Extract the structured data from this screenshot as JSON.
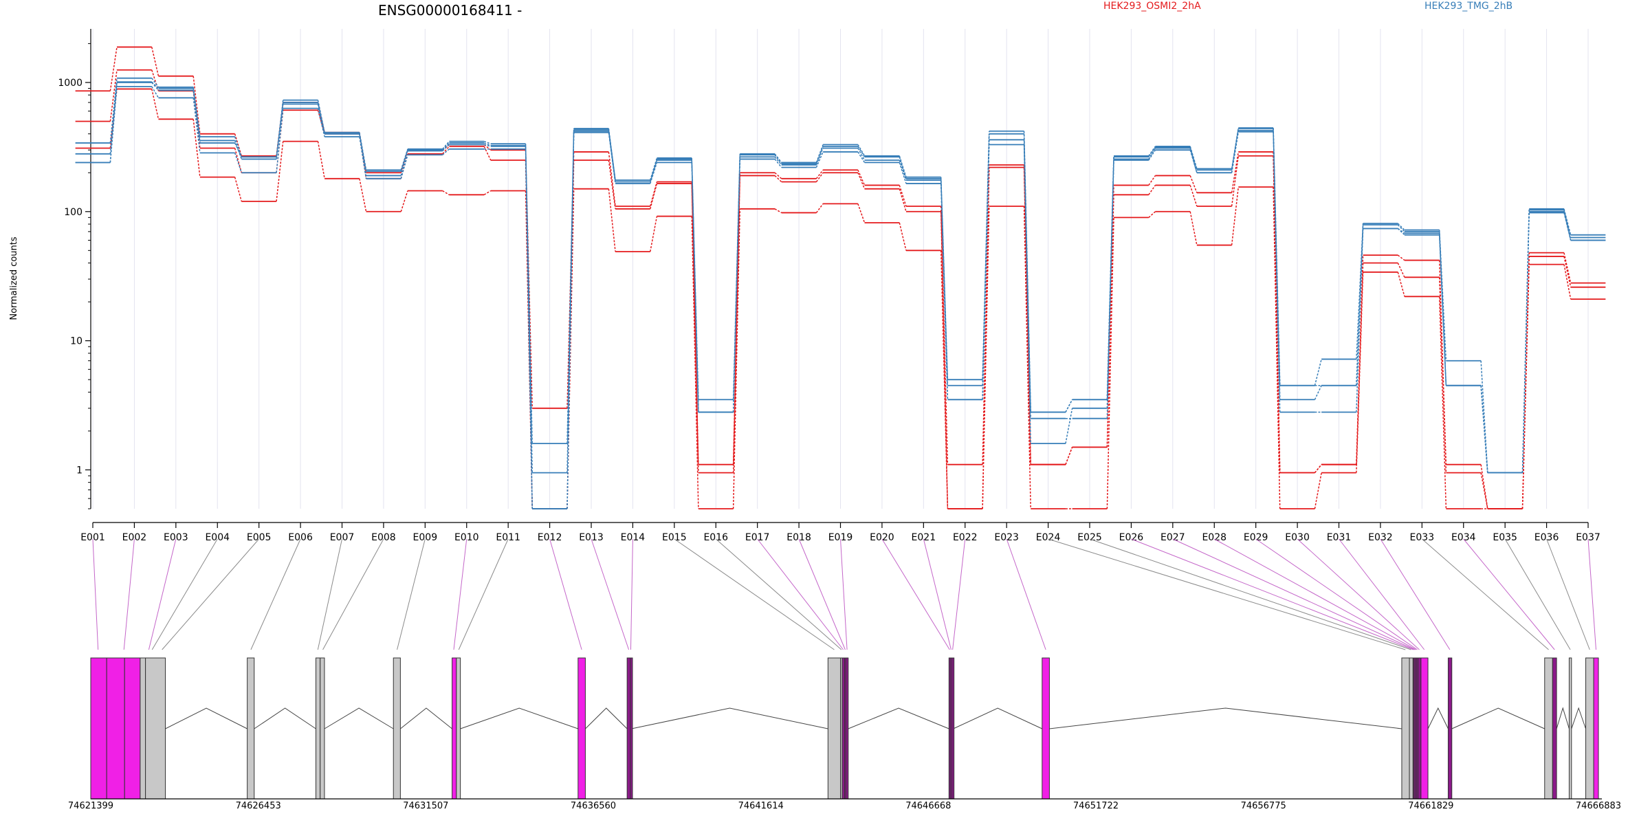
{
  "chart_data": {
    "type": "line",
    "title": "ENSG00000168411 -",
    "ylabel": "Normalized counts",
    "y_scale": "log",
    "ylim": [
      0.5,
      2600
    ],
    "y_ticks": [
      1,
      10,
      100,
      1000
    ],
    "y_tick_labels": [
      "1",
      "10",
      "100",
      "1000"
    ],
    "categories": [
      "E001",
      "E002",
      "E003",
      "E004",
      "E005",
      "E006",
      "E007",
      "E008",
      "E009",
      "E010",
      "E011",
      "E012",
      "E013",
      "E014",
      "E015",
      "E016",
      "E017",
      "E018",
      "E019",
      "E020",
      "E021",
      "E022",
      "E023",
      "E024",
      "E025",
      "E026",
      "E027",
      "E028",
      "E029",
      "E030",
      "E031",
      "E032",
      "E033",
      "E034",
      "E035",
      "E036",
      "E037"
    ],
    "groups": [
      {
        "name": "HEK293_OSMI2_2hA",
        "color": "#e41a1c"
      },
      {
        "name": "HEK293_TMG_2hB",
        "color": "#377eb8"
      }
    ],
    "series": [
      {
        "group": 0,
        "values": [
          860,
          1880,
          1120,
          400,
          270,
          700,
          410,
          200,
          300,
          330,
          300,
          3.0,
          290,
          110,
          170,
          1.1,
          200,
          180,
          210,
          160,
          110,
          1.1,
          230,
          1.1,
          1.5,
          160,
          190,
          140,
          290,
          0.95,
          1.1,
          46,
          42,
          1.1,
          0.5,
          48,
          28
        ]
      },
      {
        "group": 0,
        "values": [
          500,
          1250,
          860,
          310,
          200,
          610,
          400,
          180,
          280,
          320,
          250,
          0.5,
          250,
          105,
          165,
          0.95,
          190,
          170,
          200,
          150,
          100,
          0.5,
          220,
          1.1,
          1.5,
          135,
          160,
          110,
          270,
          0.95,
          1.1,
          40,
          31,
          0.95,
          0.5,
          45,
          26
        ]
      },
      {
        "group": 0,
        "values": [
          310,
          890,
          520,
          185,
          120,
          350,
          180,
          100,
          145,
          135,
          145,
          0.5,
          150,
          49,
          92,
          0.5,
          105,
          98,
          115,
          82,
          50,
          0.5,
          110,
          0.5,
          0.5,
          90,
          100,
          55,
          155,
          0.5,
          0.95,
          34,
          22,
          0.5,
          0.5,
          39,
          21
        ]
      },
      {
        "group": 1,
        "values": [
          340,
          1080,
          920,
          380,
          265,
          730,
          410,
          210,
          305,
          350,
          335,
          0.95,
          440,
          175,
          260,
          3.5,
          280,
          240,
          330,
          270,
          185,
          5.0,
          420,
          2.8,
          3.5,
          270,
          320,
          215,
          445,
          4.5,
          7.2,
          81,
          72,
          7.0,
          0.95,
          105,
          66
        ]
      },
      {
        "group": 1,
        "values": [
          280,
          1010,
          900,
          355,
          255,
          700,
          400,
          205,
          300,
          340,
          325,
          1.6,
          430,
          175,
          255,
          2.8,
          275,
          235,
          320,
          265,
          180,
          4.5,
          400,
          2.8,
          3.5,
          265,
          315,
          210,
          440,
          4.5,
          4.5,
          79,
          70,
          4.5,
          0.95,
          103,
          63
        ]
      },
      {
        "group": 1,
        "values": [
          240,
          1000,
          870,
          340,
          265,
          680,
          400,
          190,
          295,
          330,
          320,
          0.5,
          420,
          170,
          250,
          2.8,
          265,
          230,
          310,
          250,
          175,
          3.5,
          360,
          2.5,
          2.5,
          255,
          310,
          200,
          425,
          3.5,
          4.5,
          74,
          68,
          4.5,
          0.95,
          100,
          60
        ]
      },
      {
        "group": 1,
        "values": [
          240,
          930,
          760,
          285,
          200,
          630,
          380,
          180,
          275,
          305,
          305,
          0.5,
          410,
          165,
          240,
          2.8,
          255,
          220,
          290,
          240,
          165,
          3.5,
          330,
          1.6,
          3.0,
          250,
          300,
          200,
          415,
          2.8,
          2.8,
          74,
          66,
          4.5,
          0.95,
          98,
          60
        ]
      }
    ],
    "genomic_axis": {
      "tick_labels": [
        "74621399",
        "74626453",
        "74631507",
        "74636560",
        "74641614",
        "74646668",
        "74651722",
        "74656775",
        "74661829",
        "74666883"
      ],
      "range": [
        74621399,
        74666883
      ],
      "feature_colors": {
        "significant": "#f020e6",
        "dark_significant": "#8b1a89",
        "not_significant": "#c8c8c8"
      },
      "exons": [
        {
          "id": "E001",
          "s": 74621399,
          "e": 74621880,
          "sig": true,
          "c": 74621620
        },
        {
          "id": "E002",
          "s": 74621880,
          "e": 74622420,
          "sig": true,
          "c": 74622400
        },
        {
          "id": "E003",
          "s": 74622420,
          "e": 74622890,
          "sig": true,
          "c": 74623150
        },
        {
          "id": "E004",
          "s": 74622890,
          "e": 74623050,
          "sig": false,
          "c": 74623250
        },
        {
          "id": "E005",
          "s": 74623050,
          "e": 74623650,
          "sig": false,
          "c": 74623550
        },
        {
          "id": "E006",
          "s": 74626120,
          "e": 74626330,
          "sig": false,
          "c": 74626230
        },
        {
          "id": "E007",
          "s": 74628190,
          "e": 74628320,
          "sig": false,
          "c": 74628250
        },
        {
          "id": "E008",
          "s": 74628320,
          "e": 74628450,
          "sig": false,
          "c": 74628400
        },
        {
          "id": "E009",
          "s": 74630530,
          "e": 74630740,
          "sig": false,
          "c": 74630640
        },
        {
          "id": "E010",
          "s": 74632300,
          "e": 74632430,
          "sig": true,
          "c": 74632350
        },
        {
          "id": "E011",
          "s": 74632430,
          "e": 74632550,
          "sig": false,
          "c": 74632500
        },
        {
          "id": "E012",
          "s": 74636100,
          "e": 74636320,
          "sig": true,
          "c": 74636210
        },
        {
          "id": "E013",
          "s": 74637580,
          "e": 74637680,
          "sig": true,
          "c": 74637630
        },
        {
          "id": "E014",
          "s": 74637680,
          "e": 74637710,
          "sig": true,
          "c": 74637690
        },
        {
          "id": "E015",
          "s": 74643640,
          "e": 74644020,
          "sig": false,
          "c": 74643830
        },
        {
          "id": "E016",
          "s": 74644020,
          "e": 74644070,
          "sig": false,
          "c": 74644045
        },
        {
          "id": "E017",
          "s": 74644070,
          "e": 74644140,
          "sig": true,
          "c": 74644100
        },
        {
          "id": "E018",
          "s": 74644140,
          "e": 74644180,
          "sig": true,
          "c": 74644160
        },
        {
          "id": "E019",
          "s": 74644180,
          "e": 74644250,
          "sig": true,
          "c": 74644215
        },
        {
          "id": "E020",
          "s": 74647290,
          "e": 74647330,
          "sig": true,
          "c": 74647310
        },
        {
          "id": "E021",
          "s": 74647330,
          "e": 74647380,
          "sig": true,
          "c": 74647355
        },
        {
          "id": "E022",
          "s": 74647380,
          "e": 74647420,
          "sig": true,
          "c": 74647400
        },
        {
          "id": "E023",
          "s": 74650100,
          "e": 74650320,
          "sig": true,
          "c": 74650210
        },
        {
          "id": "E024",
          "s": 74660950,
          "e": 74661180,
          "sig": false,
          "c": 74661060
        },
        {
          "id": "E025",
          "s": 74661180,
          "e": 74661290,
          "sig": false,
          "c": 74661230
        },
        {
          "id": "E026",
          "s": 74661290,
          "e": 74661320,
          "sig": true,
          "c": 74661300
        },
        {
          "id": "E027",
          "s": 74661320,
          "e": 74661360,
          "sig": true,
          "c": 74661340
        },
        {
          "id": "E028",
          "s": 74661360,
          "e": 74661400,
          "sig": true,
          "c": 74661380
        },
        {
          "id": "E029",
          "s": 74661400,
          "e": 74661440,
          "sig": true,
          "c": 74661420
        },
        {
          "id": "E030",
          "s": 74661440,
          "e": 74661530,
          "sig": true,
          "c": 74661480
        },
        {
          "id": "E031",
          "s": 74661530,
          "e": 74661740,
          "sig": true,
          "c": 74661630
        },
        {
          "id": "E032",
          "s": 74662350,
          "e": 74662460,
          "sig": true,
          "c": 74662400
        },
        {
          "id": "E033",
          "s": 74665260,
          "e": 74665500,
          "sig": false,
          "c": 74665380
        },
        {
          "id": "E034",
          "s": 74665500,
          "e": 74665620,
          "sig": true,
          "c": 74665560
        },
        {
          "id": "E035",
          "s": 74666000,
          "e": 74666070,
          "sig": false,
          "c": 74666035
        },
        {
          "id": "E036",
          "s": 74666500,
          "e": 74666740,
          "sig": false,
          "c": 74666620
        },
        {
          "id": "E037",
          "s": 74666740,
          "e": 74666883,
          "sig": true,
          "c": 74666810
        }
      ]
    }
  }
}
